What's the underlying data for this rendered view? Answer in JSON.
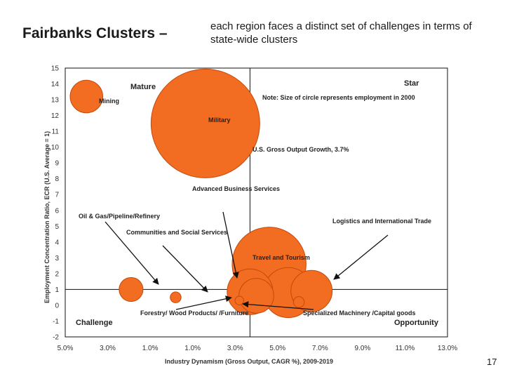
{
  "header": {
    "title": "Fairbanks Clusters –",
    "subtitle": "each region faces a distinct set of challenges  in terms of state-wide clusters"
  },
  "page_number": "17",
  "chart_data": {
    "type": "scatter",
    "bubble": true,
    "xlabel": "Industry Dynamism (Gross Output, CAGR %), 2009-2019",
    "ylabel": "Employment Concentration  Ratio, ECR (U.S. Average = 1)",
    "xlim": [
      -5,
      13
    ],
    "ylim": [
      -2,
      15
    ],
    "x_tick_labels": [
      "5.0%",
      "3.0%",
      "1.0%",
      "1.0%",
      "3.0%",
      "5.0%",
      "7.0%",
      "9.0%",
      "11.0%",
      "13.0%"
    ],
    "y_ticks": [
      15,
      14,
      13,
      12,
      11,
      10,
      9,
      8,
      7,
      6,
      5,
      4,
      3,
      2,
      1,
      0,
      -1,
      -2
    ],
    "reference_lines": {
      "x": 3.7,
      "y": 1
    },
    "quadrants": {
      "top_left": "Mature",
      "top_right": "Star",
      "bottom_left": "Challenge",
      "bottom_right": "Opportunity"
    },
    "note": "Note: Size of circle represents  employment in 2000",
    "reference_line_label": "U.S. Gross Output Growth, 3.7%",
    "bubble_color": "#f26d21",
    "bubble_edge": "#c24a0c",
    "points": [
      {
        "name": "Mining",
        "x": -4.0,
        "y": 13.2,
        "size": 15
      },
      {
        "name": "Military",
        "x": 1.6,
        "y": 11.5,
        "size": 50
      },
      {
        "name": "Travel and Tourism",
        "x": 4.6,
        "y": 2.6,
        "size": 34
      },
      {
        "name": "Logistics and International Trade",
        "x": 5.5,
        "y": 0.8,
        "size": 23
      },
      {
        "name": "Specialized Machinery /Capital goods",
        "x": 6.6,
        "y": 0.9,
        "size": 19
      },
      {
        "name": "Advanced Business Services",
        "x": 3.7,
        "y": 0.85,
        "size": 21
      },
      {
        "name": "Communities and Social Services",
        "x": 4.0,
        "y": 0.6,
        "size": 16
      },
      {
        "name": "Oil & Gas/Pipeline/Refinery",
        "x": -1.9,
        "y": 1.0,
        "size": 11
      },
      {
        "name": "Forestry/ Wood Products/ /Furniture",
        "x": 0.2,
        "y": 0.5,
        "size": 5
      },
      {
        "name": "Forestry/Wood (small)",
        "x": 3.2,
        "y": 0.3,
        "size": 4
      },
      {
        "name": "Specialized Machinery (small)",
        "x": 6.0,
        "y": 0.2,
        "size": 5
      }
    ],
    "annotations": [
      {
        "text": "Mining"
      },
      {
        "text": "Military"
      },
      {
        "text": "Travel and Tourism"
      },
      {
        "text": "Advanced Business Services"
      },
      {
        "text": "Oil & Gas/Pipeline/Refinery"
      },
      {
        "text": "Communities and Social Services"
      },
      {
        "text": "Logistics and International Trade"
      },
      {
        "text": "Forestry/ Wood Products/ /Furniture"
      },
      {
        "text": "Specialized Machinery /Capital goods"
      }
    ]
  }
}
